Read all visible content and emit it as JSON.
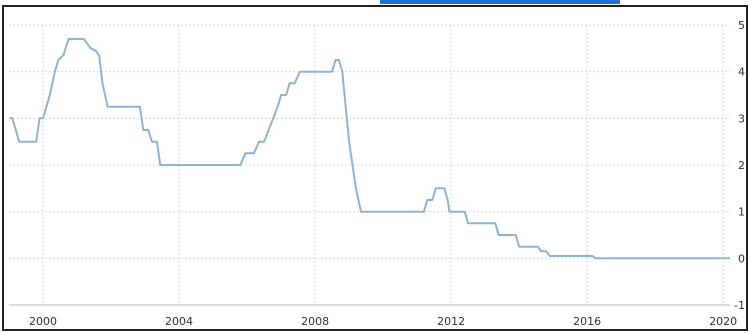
{
  "chart_data": {
    "type": "line",
    "title": "",
    "xlabel": "",
    "ylabel": "",
    "grid": true,
    "legend": "none",
    "xlim": [
      1999.0,
      2020.2
    ],
    "ylim": [
      -1,
      5
    ],
    "x_ticks": [
      2000,
      2004,
      2008,
      2012,
      2016,
      2020
    ],
    "y_ticks": [
      5,
      4,
      3,
      2,
      1,
      0,
      -1
    ],
    "colors": {
      "line": "#8fb3d3",
      "grid": "#d9d9d9",
      "frame": "#222222",
      "accent_top": "#1f73d8"
    },
    "series": [
      {
        "points": [
          [
            1999.0,
            3.0
          ],
          [
            1999.1,
            3.0
          ],
          [
            1999.3,
            2.5
          ],
          [
            1999.8,
            2.5
          ],
          [
            1999.9,
            3.0
          ],
          [
            2000.0,
            3.0
          ],
          [
            2000.1,
            3.25
          ],
          [
            2000.2,
            3.5
          ],
          [
            2000.35,
            4.0
          ],
          [
            2000.45,
            4.25
          ],
          [
            2000.6,
            4.35
          ],
          [
            2000.75,
            4.7
          ],
          [
            2001.2,
            4.7
          ],
          [
            2001.4,
            4.5
          ],
          [
            2001.55,
            4.45
          ],
          [
            2001.65,
            4.35
          ],
          [
            2001.75,
            3.75
          ],
          [
            2001.9,
            3.25
          ],
          [
            2002.85,
            3.25
          ],
          [
            2002.95,
            2.75
          ],
          [
            2003.1,
            2.75
          ],
          [
            2003.2,
            2.5
          ],
          [
            2003.35,
            2.5
          ],
          [
            2003.45,
            2.0
          ],
          [
            2005.8,
            2.0
          ],
          [
            2005.95,
            2.25
          ],
          [
            2006.2,
            2.25
          ],
          [
            2006.35,
            2.5
          ],
          [
            2006.5,
            2.5
          ],
          [
            2006.9,
            3.25
          ],
          [
            2007.0,
            3.5
          ],
          [
            2007.15,
            3.5
          ],
          [
            2007.25,
            3.75
          ],
          [
            2007.4,
            3.75
          ],
          [
            2007.55,
            4.0
          ],
          [
            2008.5,
            4.0
          ],
          [
            2008.6,
            4.25
          ],
          [
            2008.7,
            4.25
          ],
          [
            2008.8,
            4.0
          ],
          [
            2008.9,
            3.25
          ],
          [
            2009.0,
            2.5
          ],
          [
            2009.1,
            2.0
          ],
          [
            2009.2,
            1.5
          ],
          [
            2009.35,
            1.0
          ],
          [
            2011.2,
            1.0
          ],
          [
            2011.3,
            1.25
          ],
          [
            2011.45,
            1.25
          ],
          [
            2011.55,
            1.5
          ],
          [
            2011.8,
            1.5
          ],
          [
            2011.9,
            1.25
          ],
          [
            2011.95,
            1.0
          ],
          [
            2012.4,
            1.0
          ],
          [
            2012.5,
            0.75
          ],
          [
            2013.3,
            0.75
          ],
          [
            2013.4,
            0.5
          ],
          [
            2013.9,
            0.5
          ],
          [
            2014.0,
            0.25
          ],
          [
            2014.55,
            0.25
          ],
          [
            2014.65,
            0.15
          ],
          [
            2014.8,
            0.15
          ],
          [
            2014.9,
            0.05
          ],
          [
            2016.15,
            0.05
          ],
          [
            2016.25,
            0.0
          ],
          [
            2020.2,
            0.0
          ]
        ]
      }
    ]
  }
}
